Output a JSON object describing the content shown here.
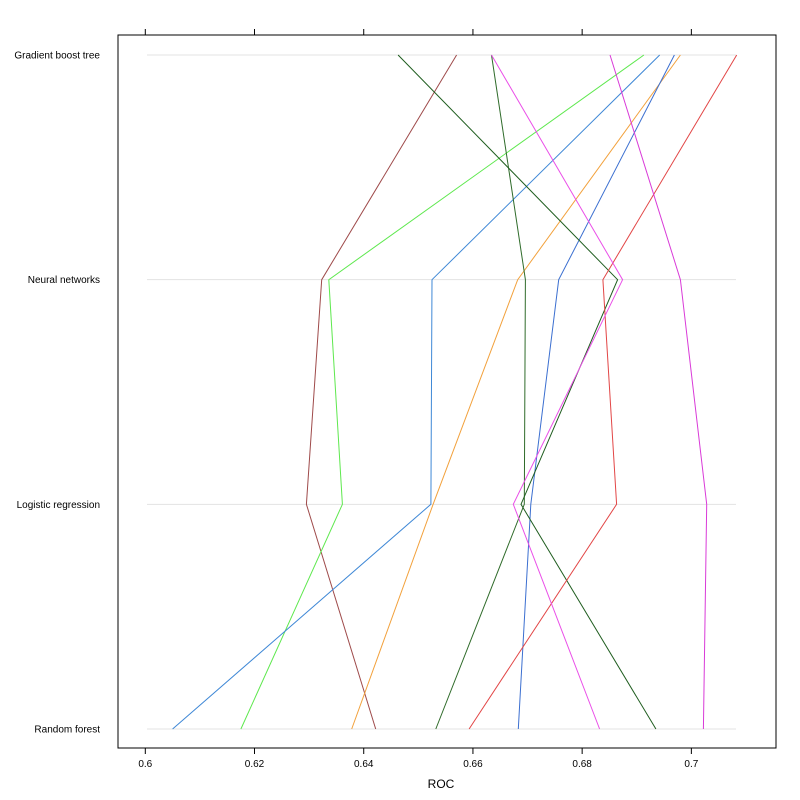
{
  "chart_data": {
    "type": "line",
    "title": "",
    "xlabel": "ROC",
    "ylabel": "",
    "xlim": [
      0.595,
      0.7155
    ],
    "x_ticks": [
      0.6,
      0.62,
      0.64,
      0.66,
      0.68,
      0.7
    ],
    "x_tick_labels": [
      "0.6",
      "0.62",
      "0.64",
      "0.66",
      "0.68",
      "0.7"
    ],
    "categories": [
      "Random forest",
      "Logistic regression",
      "Neural networks",
      "Gradient boost tree"
    ],
    "grid": true,
    "legend": "none",
    "series": [
      {
        "color": "#9e4a4a",
        "values": [
          0.6422,
          0.6295,
          0.6323,
          0.657
        ]
      },
      {
        "color": "#5ee84e",
        "values": [
          0.6175,
          0.6361,
          0.6336,
          0.6913
        ]
      },
      {
        "color": "#3f88d6",
        "values": [
          0.605,
          0.6523,
          0.6525,
          0.6942
        ]
      },
      {
        "color": "#f2a13c",
        "values": [
          0.6378,
          0.6527,
          0.6682,
          0.698
        ]
      },
      {
        "color": "#3b6fd0",
        "values": [
          0.6683,
          0.6706,
          0.6757,
          0.6969
        ]
      },
      {
        "color": "#2f6b2a",
        "values": [
          0.6532,
          0.6694,
          0.6696,
          0.6634
        ]
      },
      {
        "color": "#1f5d1f",
        "values": [
          0.6935,
          0.6688,
          0.6865,
          0.6463
        ]
      },
      {
        "color": "#e24646",
        "values": [
          0.6593,
          0.6863,
          0.6838,
          0.7083
        ]
      },
      {
        "color": "#ea4fe8",
        "values": [
          0.6832,
          0.6674,
          0.6874,
          0.6634
        ]
      },
      {
        "color": "#d93ad8",
        "values": [
          0.7022,
          0.7028,
          0.698,
          0.6851
        ]
      }
    ]
  }
}
